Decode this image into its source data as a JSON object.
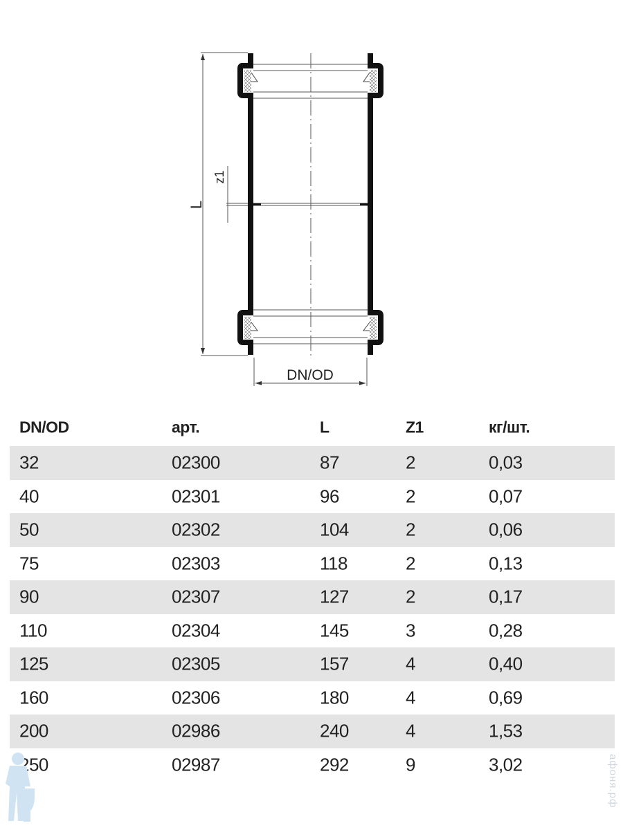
{
  "drawing": {
    "label_length": "L",
    "label_z1": "z1",
    "label_diameter": "DN/OD"
  },
  "table": {
    "headers": [
      "DN/OD",
      "арт.",
      "L",
      "Z1",
      "кг/шт."
    ],
    "rows": [
      [
        "32",
        "02300",
        "87",
        "2",
        "0,03"
      ],
      [
        "40",
        "02301",
        "96",
        "2",
        "0,07"
      ],
      [
        "50",
        "02302",
        "104",
        "2",
        "0,06"
      ],
      [
        "75",
        "02303",
        "118",
        "2",
        "0,13"
      ],
      [
        "90",
        "02307",
        "127",
        "2",
        "0,17"
      ],
      [
        "110",
        "02304",
        "145",
        "3",
        "0,28"
      ],
      [
        "125",
        "02305",
        "157",
        "4",
        "0,40"
      ],
      [
        "160",
        "02306",
        "180",
        "4",
        "0,69"
      ],
      [
        "200",
        "02986",
        "240",
        "4",
        "1,53"
      ],
      [
        "250",
        "02987",
        "292",
        "9",
        "3,02"
      ]
    ],
    "stripe_color": "#e4e4e4"
  },
  "watermark": {
    "text": "афоня.рф",
    "icon": "plumber-with-toilet-logo"
  }
}
